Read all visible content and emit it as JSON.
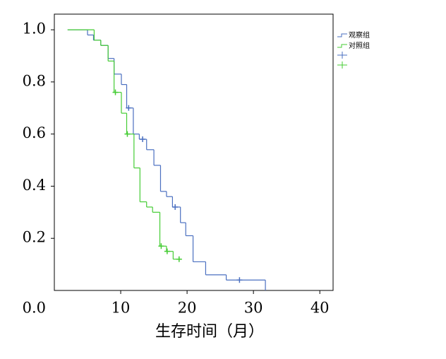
{
  "chart_data": {
    "type": "step",
    "x_label": "生存时间（月）",
    "xlim": [
      0,
      42
    ],
    "xticks": [
      10,
      20,
      30,
      40
    ],
    "ylim": [
      0,
      1.06
    ],
    "yticks": [
      {
        "value": 0,
        "label": "0.0"
      },
      0.2,
      0.4,
      0.6,
      0.8,
      {
        "value": 1,
        "label": "1.0"
      }
    ],
    "series": [
      {
        "name": "观察组",
        "color": "#4a6fc0",
        "x": [
          2,
          5.0,
          5.9,
          7.0,
          8.1,
          9.0,
          10.1,
          10.9,
          11.9,
          12.8,
          13.9,
          15.0,
          16.0,
          16.9,
          17.8,
          19.0,
          19.8,
          20.9,
          22.8,
          25.9,
          31.8
        ],
        "values": [
          1.0,
          0.98,
          0.96,
          0.94,
          0.89,
          0.83,
          0.79,
          0.7,
          0.6,
          0.58,
          0.54,
          0.48,
          0.38,
          0.36,
          0.32,
          0.26,
          0.21,
          0.11,
          0.06,
          0.04,
          0
        ],
        "censor_x": [
          11.2,
          13.3,
          18.2,
          27.9
        ],
        "censor_values": [
          0.7,
          0.58,
          0.32,
          0.04
        ]
      },
      {
        "name": "对照组",
        "color": "#44cc33",
        "x": [
          2,
          6.0,
          7.0,
          8.1,
          9.0,
          10.1,
          10.9,
          12.0,
          12.9,
          13.9,
          14.8,
          15.9,
          16.9,
          17.9,
          19.2
        ],
        "values": [
          1.0,
          0.96,
          0.94,
          0.88,
          0.76,
          0.68,
          0.6,
          0.47,
          0.34,
          0.32,
          0.3,
          0.17,
          0.15,
          0.12,
          0.12
        ],
        "censor_x": [
          9.2,
          11.0,
          16.1,
          17.0,
          18.8
        ],
        "censor_values": [
          0.76,
          0.6,
          0.17,
          0.15,
          0.12
        ]
      }
    ]
  }
}
